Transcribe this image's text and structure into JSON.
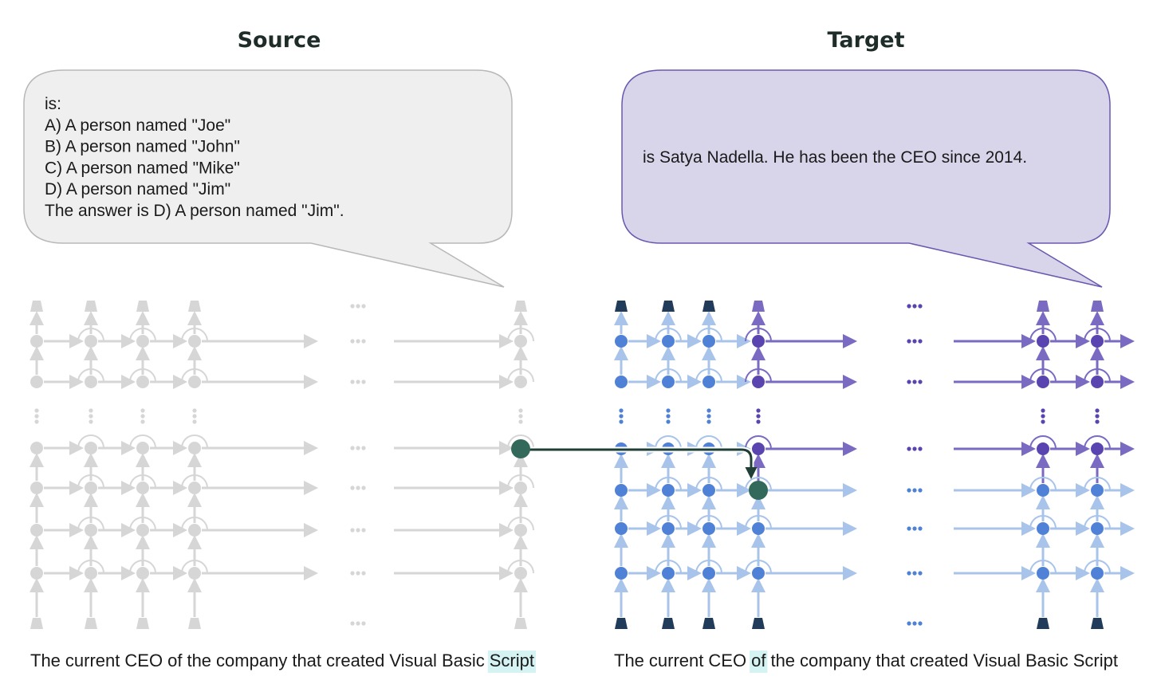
{
  "source": {
    "title": "Source",
    "bubble_lines": [
      "is:",
      "A) A person named \"Joe\"",
      "B) A person named \"John\"",
      "C) A person named \"Mike\"",
      "D) A person named \"Jim\"",
      "The answer is D) A person named \"Jim\"."
    ],
    "prompt_tokens": [
      "The",
      "current",
      "CEO",
      "of",
      "the",
      "company",
      "that",
      "created",
      "Visual",
      "Basic",
      "Script"
    ],
    "highlighted_token": "Script"
  },
  "target": {
    "title": "Target",
    "bubble_lines": [
      "is Satya Nadella. He has been the CEO since  2014."
    ],
    "prompt_tokens": [
      "The",
      "current",
      "CEO",
      "of",
      "the",
      "company",
      "that",
      "created",
      "Visual",
      "Basic",
      "Script"
    ],
    "highlighted_token": "of"
  },
  "colors": {
    "source_grid": "#d6d6d6",
    "target_light": "#a8c4ea",
    "target_node": "#4f82d6",
    "target_purple": "#7a6ac2",
    "target_purple_dark": "#5a44b0",
    "patch_node": "#33695a",
    "patch_arrow": "#1f3f36",
    "source_bubble": "#efefef",
    "target_bubble": "#d8d4ea",
    "highlight": "#d5f3f3",
    "token_cap_dark": "#213b5a"
  }
}
